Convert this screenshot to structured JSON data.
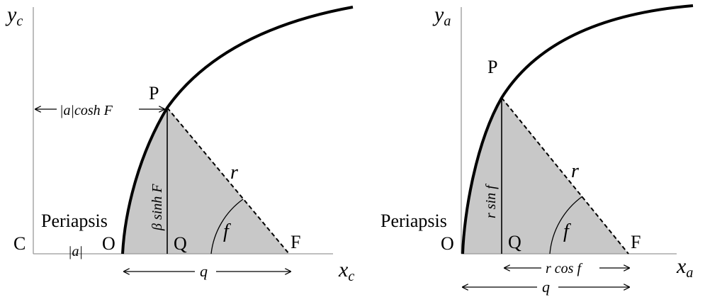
{
  "left_diagram": {
    "y_axis_label": "y",
    "y_axis_sub": "c",
    "x_axis_label": "x",
    "x_axis_sub": "c",
    "point_C": "C",
    "point_O": "O",
    "point_P": "P",
    "point_Q": "Q",
    "point_F": "F",
    "periapsis": "Periapsis",
    "abs_a": "|a|",
    "abs_a_cosh": "|a|cosh F",
    "beta_sinh": "β sinh F",
    "r": "r",
    "f": "f",
    "q": "q"
  },
  "right_diagram": {
    "y_axis_label": "y",
    "y_axis_sub": "a",
    "x_axis_label": "x",
    "x_axis_sub": "a",
    "point_O": "O",
    "point_P": "P",
    "point_Q": "Q",
    "point_F": "F",
    "periapsis": "Periapsis",
    "r_sin_f": "r sin f",
    "r_cos_f": "r cos f",
    "r": "r",
    "f": "f",
    "q": "q"
  },
  "colors": {
    "fill": "#c8c8c8",
    "stroke": "#000000",
    "axis": "#999999"
  }
}
